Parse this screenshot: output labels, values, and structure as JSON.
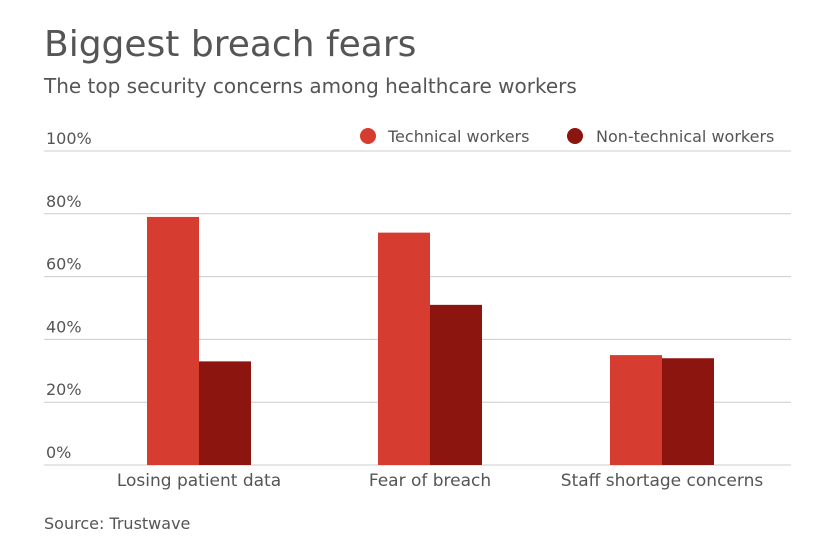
{
  "title": "Biggest breach fears",
  "subtitle": "The top security concerns among healthcare workers",
  "source": "Source: Trustwave",
  "colors": {
    "series1": "#d63c30",
    "series2": "#8c150f",
    "grid": "#cccccc",
    "text": "#555555"
  },
  "chart_data": {
    "type": "bar",
    "categories": [
      "Losing patient data",
      "Fear of breach",
      "Staff shortage concerns"
    ],
    "series": [
      {
        "name": "Technical workers",
        "values": [
          79,
          74,
          35
        ]
      },
      {
        "name": "Non-technical workers",
        "values": [
          33,
          51,
          34
        ]
      }
    ],
    "ylim": [
      0,
      100
    ],
    "yticks": [
      0,
      20,
      40,
      60,
      80,
      100
    ],
    "ytick_labels": [
      "0%",
      "20%",
      "40%",
      "60%",
      "80%",
      "100%"
    ],
    "grid": true,
    "legend_position": "top-right"
  }
}
